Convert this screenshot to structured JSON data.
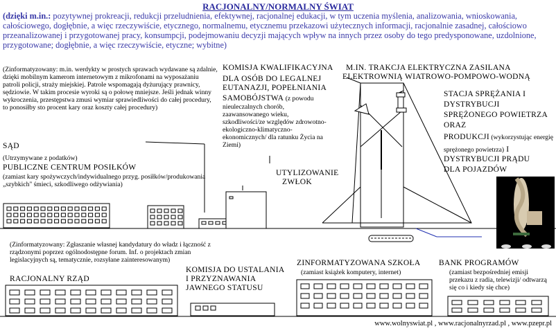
{
  "title": "RACJONALNY/NORMALNY ŚWIAT",
  "intro": {
    "lead": "(dzięki m.in.:",
    "body": " pozytywnej prokreacji, redukcji przeludnienia, efektywnej, racjonalnej edukacji, w tym uczenia myślenia, analizowania, wnioskowania, całościowego, dogłębnie, a więc rzeczywiście, etycznego, normalnemu, etycznemu przekazowi użytecznych informacji, racjonalnie zasadnej, całościowo przeanalizowanej i przygotowanej pracy, konsumpcji, podejmowaniu decyzji mających wpływ na innych przez osoby do tego predysponowane, uzdolnione, przygotowane; dogłębnie, a więc rzeczywiście, etyczne; wybitne)"
  },
  "court": {
    "note": "(Zinformatyzowany: m.in. werdykty w prostych sprawach wydawane są zdalnie, dzięki mobilnym kamerom internetowym z mikrofonami na wyposażaniu patroli policji, straży miejskiej. Patrole wspomagają dyżurujący prawnicy, sędziowie. W takim procesie wyroki są o połowę mniejsze. Jeśli jednak winny wykroczenia, przestępstwa zmusi wymiar sprawiedliwości do całej procedury, to ponosiłby sto procent kary oraz koszty całej procedury)",
    "label": "SĄD"
  },
  "food": {
    "note": "(Utrzymywane z podatków)",
    "label": "PUBLICZNE CENTRUM POSIŁKÓW",
    "desc": "(zamiast kary spożywczych/indywidualnego przyg. posiłków/produkowania „szybkich\" śmieci, szkodliwego odżywiania)"
  },
  "commission": {
    "label1": "KOMISJA KWALIFIKACYJNA",
    "label2": "DLA OSÓB DO LEGALNEJ",
    "label3": "EUTANAZJI, POPEŁNIANIA",
    "label4": "SAMOBÓJSTWA",
    "desc": " (z powodu nieuleczalnych chorób, zaawansowanego wieku, szkodliwości/ze względów zdrowotno-ekologiczno-klimatyczno-ekonomicznych/ dla ratunku Życia na Ziemi)"
  },
  "disposal": {
    "line1": "UTYLIZOWANIE",
    "line2": "ZWŁOK"
  },
  "traction": {
    "line1": "M.IN. TRAKCJA ELEKTRYCZNA ZASILANA",
    "line2": "ELEKTROWNIĄ WIATROWO-POMPOWO-WODNĄ"
  },
  "station": {
    "line1": "STACJA SPRĘŻANIA I",
    "line2": "DYSTRYBUCJI",
    "line3": "SPRĘŻONEGO POWIETRZA",
    "line4": "ORAZ",
    "line5a": "PRODUKCJI",
    "line5b": " (wykorzystując energię sprężonego powietrza)",
    "line5c": " I",
    "line6": "DYSTRYBUCJI PRĄDU",
    "line7": "DLA POJAZDÓW"
  },
  "government": {
    "note": "(Zinformatyzowany: Zgłaszanie własnej kandydatury do władz i łączność z rządzonymi poprzez ogólnodostępne forum. Inf. o projektach zmian legislacyjnych są, tematycznie, rozsyłane zainteresowanym)",
    "label": "RACJONALNY RZĄD"
  },
  "status": {
    "line1": "KOMISJA DO USTALANIA",
    "line2": "I PRZYZNAWANIA",
    "line3": "JAWNEGO STATUSU"
  },
  "school": {
    "label": "ZINFORMATYZOWANA SZKOŁA",
    "desc": "(zamiast książek komputery, internet)"
  },
  "bank": {
    "label": "BANK PROGRAMÓW",
    "desc": "(zamiast bezpośredniej emisji przekazu z radia, telewizji/ odtwarzą się co i kiedy się chce)"
  },
  "footer": "www.wolnyswiat.pl , www.racjonalnyrzad.pl , www.pzepr.pl"
}
